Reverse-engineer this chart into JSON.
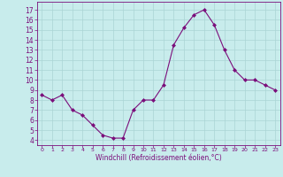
{
  "x": [
    0,
    1,
    2,
    3,
    4,
    5,
    6,
    7,
    8,
    9,
    10,
    11,
    12,
    13,
    14,
    15,
    16,
    17,
    18,
    19,
    20,
    21,
    22,
    23
  ],
  "y": [
    8.5,
    8.0,
    8.5,
    7.0,
    6.5,
    5.5,
    4.5,
    4.2,
    4.2,
    7.0,
    8.0,
    8.0,
    9.5,
    13.5,
    15.2,
    16.5,
    17.0,
    15.5,
    13.0,
    11.0,
    10.0,
    10.0,
    9.5,
    9.0
  ],
  "line_color": "#7b0e7b",
  "marker": "D",
  "marker_size": 2,
  "bg_color": "#c8ecec",
  "grid_color": "#aad4d4",
  "xlabel": "Windchill (Refroidissement éolien,°C)",
  "xlabel_color": "#7b0e7b",
  "tick_color": "#7b0e7b",
  "spine_color": "#7b0e7b",
  "ylim": [
    3.5,
    17.8
  ],
  "xlim": [
    -0.5,
    23.5
  ],
  "yticks": [
    4,
    5,
    6,
    7,
    8,
    9,
    10,
    11,
    12,
    13,
    14,
    15,
    16,
    17
  ],
  "xticks": [
    0,
    1,
    2,
    3,
    4,
    5,
    6,
    7,
    8,
    9,
    10,
    11,
    12,
    13,
    14,
    15,
    16,
    17,
    18,
    19,
    20,
    21,
    22,
    23
  ]
}
